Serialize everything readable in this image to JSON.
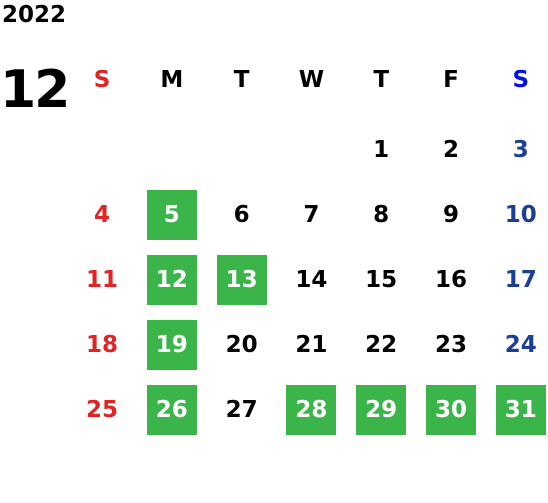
{
  "year": "2022",
  "month": "12",
  "weekdays": [
    "S",
    "M",
    "T",
    "W",
    "T",
    "F",
    "S"
  ],
  "weeks": [
    [
      null,
      null,
      null,
      null,
      {
        "day": "1"
      },
      {
        "day": "2"
      },
      {
        "day": "3"
      }
    ],
    [
      {
        "day": "4"
      },
      {
        "day": "5",
        "highlight": true
      },
      {
        "day": "6"
      },
      {
        "day": "7"
      },
      {
        "day": "8"
      },
      {
        "day": "9"
      },
      {
        "day": "10"
      }
    ],
    [
      {
        "day": "11"
      },
      {
        "day": "12",
        "highlight": true
      },
      {
        "day": "13",
        "highlight": true
      },
      {
        "day": "14"
      },
      {
        "day": "15"
      },
      {
        "day": "16"
      },
      {
        "day": "17"
      }
    ],
    [
      {
        "day": "18"
      },
      {
        "day": "19",
        "highlight": true
      },
      {
        "day": "20"
      },
      {
        "day": "21"
      },
      {
        "day": "22"
      },
      {
        "day": "23"
      },
      {
        "day": "24"
      }
    ],
    [
      {
        "day": "25"
      },
      {
        "day": "26",
        "highlight": true
      },
      {
        "day": "27"
      },
      {
        "day": "28",
        "highlight": true
      },
      {
        "day": "29",
        "highlight": true
      },
      {
        "day": "30",
        "highlight": true
      },
      {
        "day": "31",
        "highlight": true
      }
    ]
  ],
  "colors": {
    "sunday": "#e02424",
    "saturday_header": "#0010e8",
    "saturday": "#1a3f95",
    "weekday": "#000000",
    "highlight": "#3bb54a",
    "highlight_text": "#ffffff"
  }
}
